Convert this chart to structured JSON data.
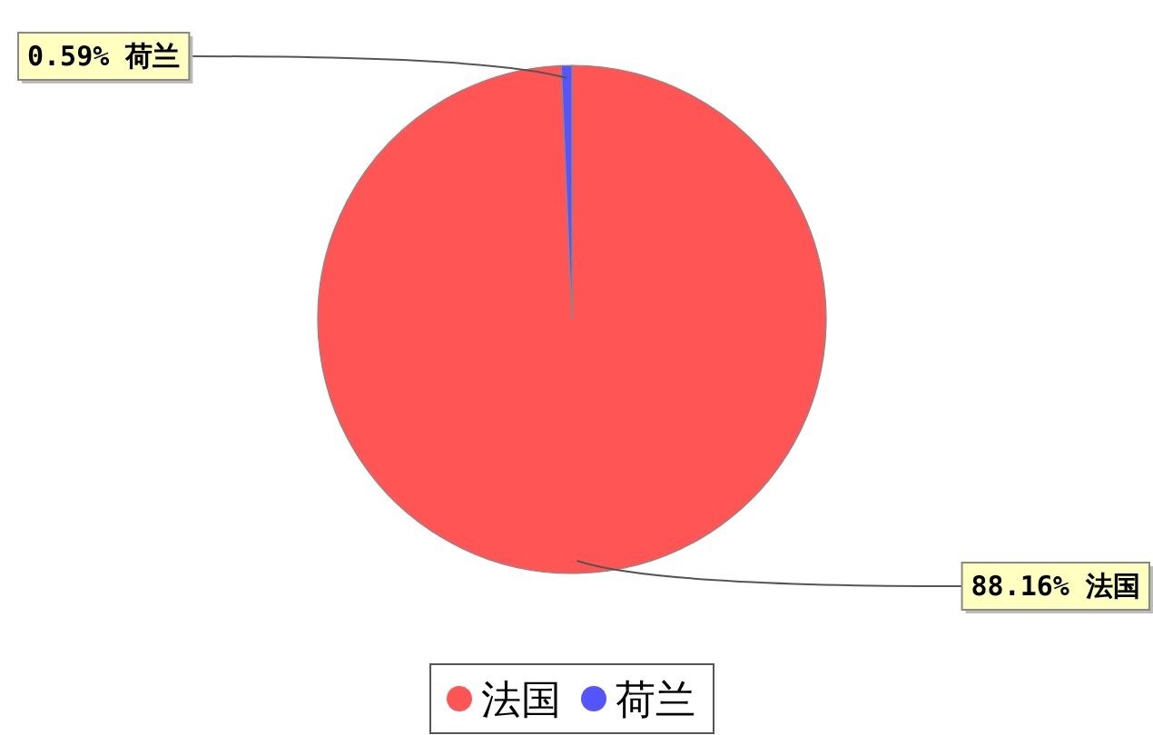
{
  "chart_data": {
    "type": "pie",
    "categories": [
      "法国",
      "荷兰"
    ],
    "values": [
      88.16,
      0.59
    ],
    "colors": [
      "#ff5555",
      "#5555ff"
    ],
    "value_labels": [
      "88.16% 法国",
      "0.59% 荷兰"
    ],
    "legend": "bottom"
  }
}
